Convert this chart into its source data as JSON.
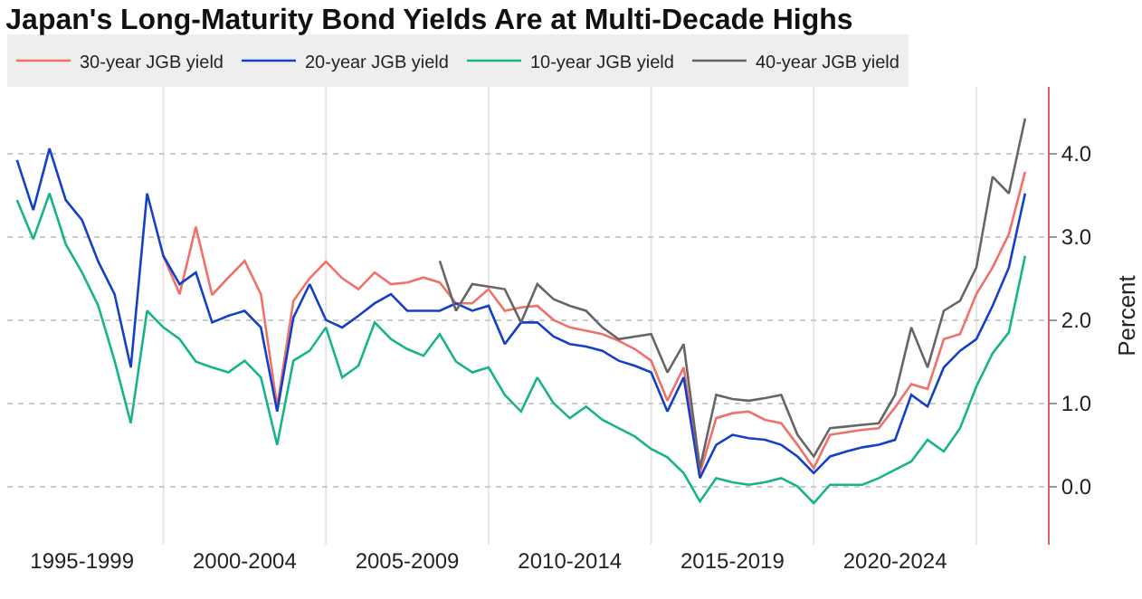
{
  "chart_data": {
    "type": "line",
    "title": "Japan's Long-Maturity Bond Yields Are at Multi-Decade Highs",
    "ylabel": "Percent",
    "categories": [
      null,
      null,
      null,
      null,
      "1995-1999",
      null,
      null,
      null,
      null,
      null,
      null,
      null,
      null,
      null,
      "2000-2004",
      null,
      null,
      null,
      null,
      null,
      null,
      null,
      null,
      null,
      "2005-2009",
      null,
      null,
      null,
      null,
      null,
      null,
      null,
      null,
      null,
      "2010-2014",
      null,
      null,
      null,
      null,
      null,
      null,
      null,
      null,
      null,
      "2015-2019",
      null,
      null,
      null,
      null,
      null,
      null,
      null,
      null,
      null,
      "2020-2024",
      null,
      null,
      null,
      null,
      null,
      null,
      null,
      null
    ],
    "ylim": [
      -0.7,
      4.8
    ],
    "yticks": [
      {
        "value": 0,
        "label": "0.0"
      },
      {
        "value": 1,
        "label": "1.0"
      },
      {
        "value": 2,
        "label": "2.0"
      },
      {
        "value": 3,
        "label": "3.0"
      },
      {
        "value": 4,
        "label": "4.0"
      }
    ],
    "grid": true,
    "legend": "top left",
    "marker": "none",
    "line_style": "solid",
    "series": [
      {
        "name": "30-year JGB yield",
        "color": "#f0706a",
        "values": [
          null,
          null,
          null,
          null,
          null,
          null,
          null,
          null,
          null,
          2.77,
          2.31,
          3.12,
          2.3,
          2.51,
          2.71,
          2.31,
          0.96,
          2.23,
          2.5,
          2.7,
          2.5,
          2.37,
          2.57,
          2.43,
          2.45,
          2.51,
          2.45,
          2.2,
          2.2,
          2.37,
          2.11,
          2.15,
          2.17,
          2.0,
          1.91,
          1.87,
          1.83,
          1.75,
          1.65,
          1.51,
          1.03,
          1.43,
          0.16,
          0.82,
          0.88,
          0.9,
          0.8,
          0.76,
          0.5,
          0.22,
          0.62,
          0.65,
          0.68,
          0.7,
          0.95,
          1.23,
          1.17,
          1.77,
          1.83,
          2.31,
          2.63,
          3.03,
          3.78
        ]
      },
      {
        "name": "20-year JGB yield",
        "color": "#1440c8",
        "values": [
          3.92,
          3.32,
          4.06,
          3.44,
          3.2,
          2.7,
          2.31,
          1.43,
          3.52,
          2.77,
          2.43,
          2.57,
          1.97,
          2.05,
          2.11,
          1.91,
          0.9,
          2.03,
          2.43,
          2.0,
          1.91,
          2.05,
          2.2,
          2.31,
          2.11,
          2.11,
          2.11,
          2.2,
          2.11,
          2.17,
          1.71,
          1.97,
          1.97,
          1.8,
          1.71,
          1.68,
          1.63,
          1.51,
          1.45,
          1.37,
          0.9,
          1.31,
          0.1,
          0.5,
          0.62,
          0.58,
          0.56,
          0.5,
          0.36,
          0.16,
          0.36,
          0.42,
          0.47,
          0.5,
          0.56,
          1.1,
          0.96,
          1.43,
          1.63,
          1.77,
          2.17,
          2.63,
          3.52
        ]
      },
      {
        "name": "10-year JGB yield",
        "color": "#17b48c",
        "values": [
          3.44,
          2.97,
          3.52,
          2.91,
          2.57,
          2.17,
          1.51,
          0.76,
          2.11,
          1.91,
          1.77,
          1.5,
          1.43,
          1.37,
          1.51,
          1.31,
          0.5,
          1.51,
          1.63,
          1.91,
          1.31,
          1.45,
          1.97,
          1.77,
          1.65,
          1.57,
          1.83,
          1.5,
          1.37,
          1.43,
          1.1,
          0.9,
          1.31,
          1.0,
          0.82,
          0.96,
          0.8,
          0.7,
          0.6,
          0.45,
          0.35,
          0.16,
          -0.18,
          0.1,
          0.05,
          0.02,
          0.05,
          0.1,
          0.0,
          -0.2,
          0.02,
          0.02,
          0.02,
          0.1,
          0.2,
          0.3,
          0.56,
          0.42,
          0.7,
          1.2,
          1.6,
          1.85,
          2.77
        ]
      },
      {
        "name": "40-year JGB yield",
        "color": "#666666",
        "values": [
          null,
          null,
          null,
          null,
          null,
          null,
          null,
          null,
          null,
          null,
          null,
          null,
          null,
          null,
          null,
          null,
          null,
          null,
          null,
          null,
          null,
          null,
          null,
          null,
          null,
          null,
          2.71,
          2.11,
          2.43,
          2.4,
          2.37,
          1.97,
          2.43,
          2.25,
          2.17,
          2.11,
          1.91,
          1.77,
          1.8,
          1.83,
          1.37,
          1.71,
          0.22,
          1.1,
          1.05,
          1.03,
          1.06,
          1.1,
          0.62,
          0.36,
          0.7,
          0.72,
          0.74,
          0.76,
          1.1,
          1.91,
          1.43,
          2.11,
          2.23,
          2.63,
          3.72,
          3.52,
          4.42
        ]
      }
    ]
  }
}
